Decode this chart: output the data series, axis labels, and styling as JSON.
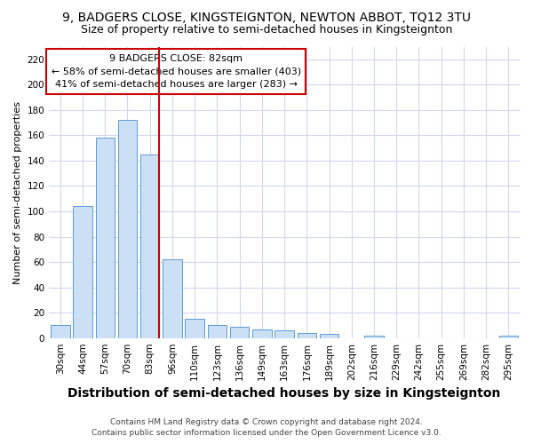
{
  "title": "9, BADGERS CLOSE, KINGSTEIGNTON, NEWTON ABBOT, TQ12 3TU",
  "subtitle": "Size of property relative to semi-detached houses in Kingsteignton",
  "xlabel": "Distribution of semi-detached houses by size in Kingsteignton",
  "ylabel": "Number of semi-detached properties",
  "footnote1": "Contains HM Land Registry data © Crown copyright and database right 2024.",
  "footnote2": "Contains public sector information licensed under the Open Government Licence v3.0.",
  "bar_labels": [
    "30sqm",
    "44sqm",
    "57sqm",
    "70sqm",
    "83sqm",
    "96sqm",
    "110sqm",
    "123sqm",
    "136sqm",
    "149sqm",
    "163sqm",
    "176sqm",
    "189sqm",
    "202sqm",
    "216sqm",
    "229sqm",
    "242sqm",
    "255sqm",
    "269sqm",
    "282sqm",
    "295sqm"
  ],
  "bar_values": [
    10,
    104,
    158,
    172,
    145,
    62,
    15,
    10,
    9,
    7,
    6,
    4,
    3,
    0,
    2,
    0,
    0,
    0,
    0,
    0,
    2
  ],
  "bar_color": "#cce0f5",
  "bar_edge_color": "#5b9bd5",
  "annotation_text_lines": [
    "9 BADGERS CLOSE: 82sqm",
    "← 58% of semi-detached houses are smaller (403)",
    "41% of semi-detached houses are larger (283) →"
  ],
  "property_line_color": "#cc0000",
  "annotation_box_color": "#ffffff",
  "annotation_box_edge": "#cc0000",
  "ylim": [
    0,
    230
  ],
  "yticks": [
    0,
    20,
    40,
    60,
    80,
    100,
    120,
    140,
    160,
    180,
    200,
    220
  ],
  "bg_color": "#ffffff",
  "grid_color": "#d0d8f0",
  "title_fontsize": 10,
  "subtitle_fontsize": 9,
  "xlabel_fontsize": 10,
  "ylabel_fontsize": 8,
  "tick_fontsize": 7.5,
  "annotation_fontsize": 8,
  "footnote_fontsize": 6.5
}
